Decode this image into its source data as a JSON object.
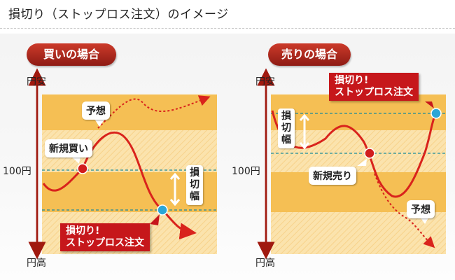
{
  "title": "損切り（ストップロス注文）のイメージ",
  "colors": {
    "accent_red": "#c6171b",
    "band_dark": "#f5bf54",
    "band_light": "#fbe3ad",
    "curve": "#d9231c",
    "dashed_line": "#1a8a9a",
    "entry_dot": "#d11d1d",
    "stop_dot": "#2ba6d6",
    "axis": "#a0190f"
  },
  "buy": {
    "heading": "買いの場合",
    "axis_top": "円安",
    "axis_bottom": "円高",
    "price_label": "100円",
    "expect_label": "予想",
    "entry_label": "新規買い",
    "range_label": "損切幅",
    "stop_label": [
      "損切り!",
      "ストップロス注文"
    ]
  },
  "sell": {
    "heading": "売りの場合",
    "axis_top": "円安",
    "axis_bottom": "円高",
    "price_label": "100円",
    "expect_label": "予想",
    "entry_label": "新規売り",
    "range_label": "損切幅",
    "stop_label": [
      "損切り!",
      "ストップロス注文"
    ]
  }
}
